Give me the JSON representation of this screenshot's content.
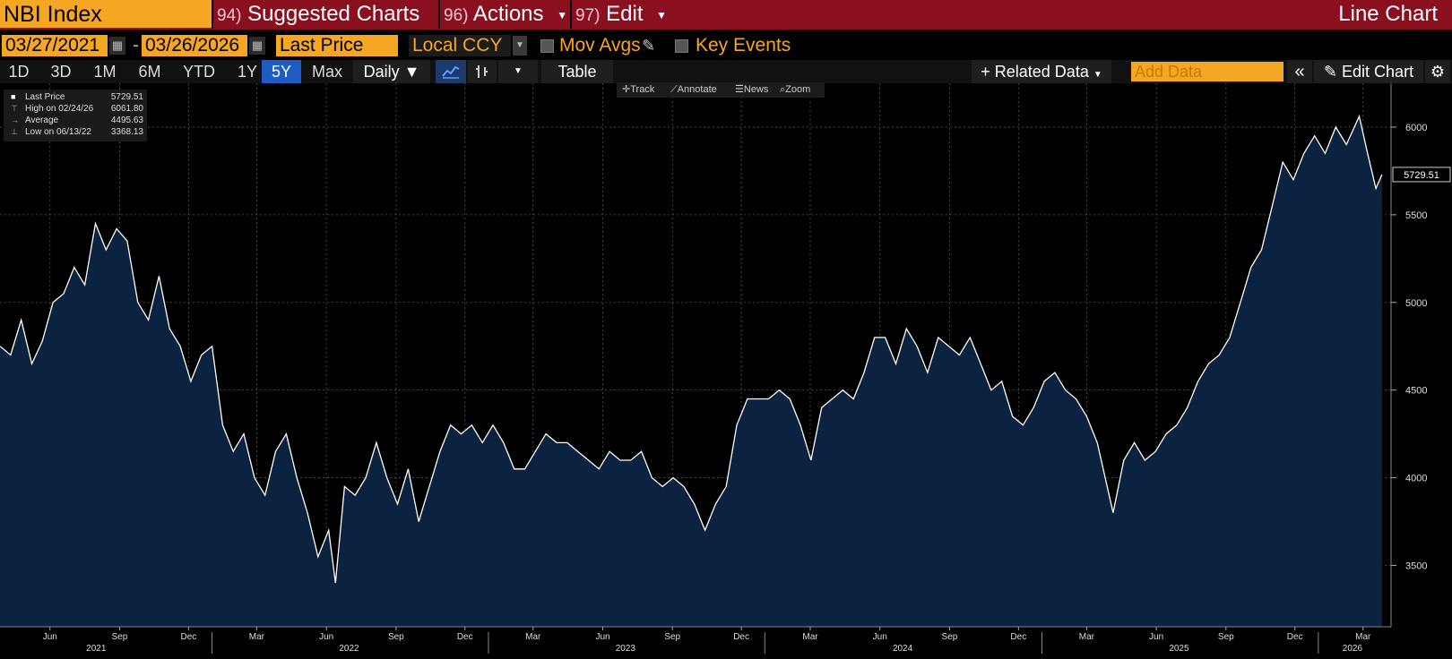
{
  "header": {
    "ticker": "NBI Index",
    "menus": [
      {
        "num": "94)",
        "label": "Suggested Charts"
      },
      {
        "num": "96)",
        "label": "Actions"
      },
      {
        "num": "97)",
        "label": "Edit"
      }
    ],
    "chart_title": "Line Chart"
  },
  "options": {
    "start_date": "03/27/2021",
    "end_date": "03/26/2026",
    "field": "Last Price",
    "currency": "Local CCY",
    "mov_avgs": "Mov Avgs",
    "key_events": "Key Events"
  },
  "toolbar": {
    "timeframes": [
      "1D",
      "3D",
      "1M",
      "6M",
      "YTD",
      "1Y",
      "5Y",
      "Max"
    ],
    "selected_timeframe": "5Y",
    "frequency": "Daily ▼",
    "table": "Table",
    "related_data": "Related Data",
    "add_data_placeholder": "Add Data",
    "edit_chart": "Edit Chart"
  },
  "chart_tools": [
    "Track",
    "Annotate",
    "News",
    "Zoom"
  ],
  "legend": [
    {
      "label": "Last Price",
      "value": "5729.51"
    },
    {
      "label": "High on 02/24/26",
      "value": "6061.80"
    },
    {
      "label": "Average",
      "value": "4495.63"
    },
    {
      "label": "Low on 06/13/22",
      "value": "3368.13"
    }
  ],
  "last_value_tag": "5729.51",
  "colors": {
    "accent": "#f5a623",
    "header_bar": "#8a1020",
    "area_fill": "#0b2240",
    "line": "#ffffff",
    "selected": "#1e5cc2"
  },
  "chart_data": {
    "type": "area",
    "title": "",
    "xlabel": "",
    "ylabel": "",
    "ylim": [
      3150,
      6250
    ],
    "y_ticks": [
      3500,
      4000,
      4500,
      5000,
      5500,
      6000
    ],
    "x_month_ticks": [
      {
        "label": "Jun",
        "date": "2021-06-01"
      },
      {
        "label": "Sep",
        "date": "2021-09-01"
      },
      {
        "label": "Dec",
        "date": "2021-12-01"
      },
      {
        "label": "Mar",
        "date": "2022-03-01"
      },
      {
        "label": "Jun",
        "date": "2022-06-01"
      },
      {
        "label": "Sep",
        "date": "2022-09-01"
      },
      {
        "label": "Dec",
        "date": "2022-12-01"
      },
      {
        "label": "Mar",
        "date": "2023-03-01"
      },
      {
        "label": "Jun",
        "date": "2023-06-01"
      },
      {
        "label": "Sep",
        "date": "2023-09-01"
      },
      {
        "label": "Dec",
        "date": "2023-12-01"
      },
      {
        "label": "Mar",
        "date": "2024-03-01"
      },
      {
        "label": "Jun",
        "date": "2024-06-01"
      },
      {
        "label": "Sep",
        "date": "2024-09-01"
      },
      {
        "label": "Dec",
        "date": "2024-12-01"
      },
      {
        "label": "Mar",
        "date": "2025-03-01"
      },
      {
        "label": "Jun",
        "date": "2025-06-01"
      },
      {
        "label": "Sep",
        "date": "2025-09-01"
      },
      {
        "label": "Dec",
        "date": "2025-12-01"
      },
      {
        "label": "Mar",
        "date": "2026-03-01"
      }
    ],
    "x_year_labels": [
      {
        "label": "2021",
        "date": "2021-08-01"
      },
      {
        "label": "2022",
        "date": "2022-07-01"
      },
      {
        "label": "2023",
        "date": "2023-07-01"
      },
      {
        "label": "2024",
        "date": "2024-07-01"
      },
      {
        "label": "2025",
        "date": "2025-07-01"
      },
      {
        "label": "2026",
        "date": "2026-02-15"
      }
    ],
    "series": [
      {
        "name": "Last Price",
        "points": [
          [
            "2021-03-27",
            4750
          ],
          [
            "2021-04-10",
            4700
          ],
          [
            "2021-04-24",
            4900
          ],
          [
            "2021-05-08",
            4650
          ],
          [
            "2021-05-22",
            4780
          ],
          [
            "2021-06-05",
            5000
          ],
          [
            "2021-06-19",
            5050
          ],
          [
            "2021-07-03",
            5200
          ],
          [
            "2021-07-17",
            5100
          ],
          [
            "2021-07-31",
            5450
          ],
          [
            "2021-08-14",
            5300
          ],
          [
            "2021-08-28",
            5420
          ],
          [
            "2021-09-11",
            5350
          ],
          [
            "2021-09-25",
            5000
          ],
          [
            "2021-10-09",
            4900
          ],
          [
            "2021-10-23",
            5150
          ],
          [
            "2021-11-06",
            4850
          ],
          [
            "2021-11-20",
            4750
          ],
          [
            "2021-12-04",
            4550
          ],
          [
            "2021-12-18",
            4700
          ],
          [
            "2022-01-01",
            4750
          ],
          [
            "2022-01-15",
            4300
          ],
          [
            "2022-01-29",
            4150
          ],
          [
            "2022-02-12",
            4250
          ],
          [
            "2022-02-26",
            4000
          ],
          [
            "2022-03-12",
            3900
          ],
          [
            "2022-03-26",
            4150
          ],
          [
            "2022-04-09",
            4250
          ],
          [
            "2022-04-23",
            4000
          ],
          [
            "2022-05-07",
            3800
          ],
          [
            "2022-05-21",
            3550
          ],
          [
            "2022-06-04",
            3700
          ],
          [
            "2022-06-13",
            3400
          ],
          [
            "2022-06-25",
            3950
          ],
          [
            "2022-07-09",
            3900
          ],
          [
            "2022-07-23",
            4000
          ],
          [
            "2022-08-06",
            4200
          ],
          [
            "2022-08-20",
            4000
          ],
          [
            "2022-09-03",
            3850
          ],
          [
            "2022-09-17",
            4050
          ],
          [
            "2022-10-01",
            3750
          ],
          [
            "2022-10-15",
            3950
          ],
          [
            "2022-10-29",
            4150
          ],
          [
            "2022-11-12",
            4300
          ],
          [
            "2022-11-26",
            4250
          ],
          [
            "2022-12-10",
            4300
          ],
          [
            "2022-12-24",
            4200
          ],
          [
            "2023-01-07",
            4300
          ],
          [
            "2023-01-21",
            4200
          ],
          [
            "2023-02-04",
            4050
          ],
          [
            "2023-02-18",
            4050
          ],
          [
            "2023-03-04",
            4150
          ],
          [
            "2023-03-18",
            4250
          ],
          [
            "2023-04-01",
            4200
          ],
          [
            "2023-04-15",
            4200
          ],
          [
            "2023-04-29",
            4150
          ],
          [
            "2023-05-13",
            4100
          ],
          [
            "2023-05-27",
            4050
          ],
          [
            "2023-06-10",
            4150
          ],
          [
            "2023-06-24",
            4100
          ],
          [
            "2023-07-08",
            4100
          ],
          [
            "2023-07-22",
            4150
          ],
          [
            "2023-08-05",
            4000
          ],
          [
            "2023-08-19",
            3950
          ],
          [
            "2023-09-02",
            4000
          ],
          [
            "2023-09-16",
            3950
          ],
          [
            "2023-09-30",
            3850
          ],
          [
            "2023-10-14",
            3700
          ],
          [
            "2023-10-28",
            3850
          ],
          [
            "2023-11-11",
            3950
          ],
          [
            "2023-11-25",
            4300
          ],
          [
            "2023-12-09",
            4450
          ],
          [
            "2023-12-23",
            4450
          ],
          [
            "2024-01-06",
            4450
          ],
          [
            "2024-01-20",
            4500
          ],
          [
            "2024-02-03",
            4450
          ],
          [
            "2024-02-17",
            4300
          ],
          [
            "2024-03-02",
            4100
          ],
          [
            "2024-03-16",
            4400
          ],
          [
            "2024-03-30",
            4450
          ],
          [
            "2024-04-13",
            4500
          ],
          [
            "2024-04-27",
            4450
          ],
          [
            "2024-05-11",
            4600
          ],
          [
            "2024-05-25",
            4800
          ],
          [
            "2024-06-08",
            4800
          ],
          [
            "2024-06-22",
            4650
          ],
          [
            "2024-07-06",
            4850
          ],
          [
            "2024-07-20",
            4750
          ],
          [
            "2024-08-03",
            4600
          ],
          [
            "2024-08-17",
            4800
          ],
          [
            "2024-08-31",
            4750
          ],
          [
            "2024-09-14",
            4700
          ],
          [
            "2024-09-28",
            4800
          ],
          [
            "2024-10-12",
            4650
          ],
          [
            "2024-10-26",
            4500
          ],
          [
            "2024-11-09",
            4550
          ],
          [
            "2024-11-23",
            4350
          ],
          [
            "2024-12-07",
            4300
          ],
          [
            "2024-12-21",
            4400
          ],
          [
            "2025-01-04",
            4550
          ],
          [
            "2025-01-18",
            4600
          ],
          [
            "2025-02-01",
            4500
          ],
          [
            "2025-02-15",
            4450
          ],
          [
            "2025-03-01",
            4350
          ],
          [
            "2025-03-15",
            4200
          ],
          [
            "2025-04-05",
            3800
          ],
          [
            "2025-04-19",
            4100
          ],
          [
            "2025-05-03",
            4200
          ],
          [
            "2025-05-17",
            4100
          ],
          [
            "2025-05-31",
            4150
          ],
          [
            "2025-06-14",
            4250
          ],
          [
            "2025-06-28",
            4300
          ],
          [
            "2025-07-12",
            4400
          ],
          [
            "2025-07-26",
            4550
          ],
          [
            "2025-08-09",
            4650
          ],
          [
            "2025-08-23",
            4700
          ],
          [
            "2025-09-06",
            4800
          ],
          [
            "2025-09-20",
            5000
          ],
          [
            "2025-10-04",
            5200
          ],
          [
            "2025-10-18",
            5300
          ],
          [
            "2025-11-01",
            5550
          ],
          [
            "2025-11-15",
            5800
          ],
          [
            "2025-11-29",
            5700
          ],
          [
            "2025-12-13",
            5850
          ],
          [
            "2025-12-27",
            5950
          ],
          [
            "2026-01-10",
            5850
          ],
          [
            "2026-01-24",
            6000
          ],
          [
            "2026-02-07",
            5900
          ],
          [
            "2026-02-24",
            6061.8
          ],
          [
            "2026-03-07",
            5850
          ],
          [
            "2026-03-18",
            5650
          ],
          [
            "2026-03-26",
            5729.51
          ]
        ]
      }
    ]
  }
}
